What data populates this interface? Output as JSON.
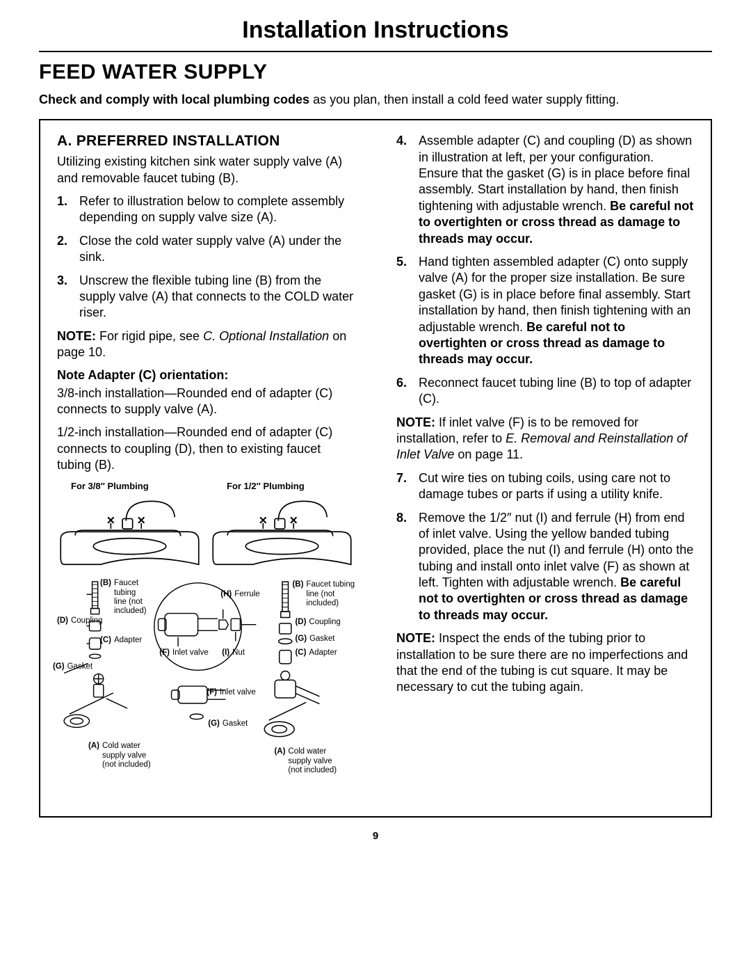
{
  "page_title": "Installation Instructions",
  "section_heading": "FEED WATER SUPPLY",
  "intro_bold": "Check and comply with local plumbing codes",
  "intro_rest": " as you plan, then install a cold feed water supply fitting.",
  "preferred_title": "A. PREFERRED INSTALLATION",
  "preferred_intro": "Utilizing existing kitchen sink water supply valve (A) and removable faucet tubing (B).",
  "steps_left": [
    {
      "n": "1.",
      "t": "Refer to illustration below to complete assembly depending on supply valve size (A)."
    },
    {
      "n": "2.",
      "t": "Close the cold water supply valve (A) under the sink."
    },
    {
      "n": "3.",
      "t": "Unscrew the flexible tubing line (B) from the supply valve (A) that connects to the COLD water riser."
    }
  ],
  "note1_label": "NOTE:",
  "note1_text": " For rigid pipe, see ",
  "note1_italic": "C. Optional Installation",
  "note1_tail": " on page 10.",
  "adapter_head": "Note Adapter (C) orientation:",
  "adapter_p1": "3/8-inch installation—Rounded end of adapter (C) connects to supply valve (A).",
  "adapter_p2": "1/2-inch installation—Rounded end of adapter (C) connects to coupling (D), then to existing faucet tubing (B).",
  "steps_right": [
    {
      "n": "4.",
      "pre": "Assemble adapter (C) and coupling (D) as shown in illustration at left, per your configuration. Ensure that the gasket (G) is in place before final assembly. Start installation by hand, then finish tightening with adjustable wrench. ",
      "bold": "Be careful not to overtighten or cross thread as damage to threads may occur."
    },
    {
      "n": "5.",
      "pre": "Hand tighten assembled adapter (C) onto supply valve (A) for the proper size installation. Be sure gasket (G) is in place before final assembly. Start installation by hand, then finish tightening with an adjustable wrench. ",
      "bold": "Be careful not to overtighten or cross thread as damage to threads may occur."
    },
    {
      "n": "6.",
      "pre": "Reconnect faucet tubing line (B) to top of adapter (C).",
      "bold": ""
    }
  ],
  "note2_label": "NOTE:",
  "note2_text": " If inlet valve (F) is to be removed for installation, refer to ",
  "note2_italic": "E. Removal and Reinstallation of Inlet Valve",
  "note2_tail": " on page 11.",
  "steps_right2": [
    {
      "n": "7.",
      "pre": "Cut wire ties on tubing coils, using care not to damage tubes or parts if using a utility knife.",
      "bold": ""
    },
    {
      "n": "8.",
      "pre": "Remove the 1/2″ nut (I) and ferrule (H) from end of inlet valve. Using the yellow banded tubing provided, place the nut (I) and ferrule (H) onto the tubing and install onto inlet valve (F) as shown at left. Tighten with adjustable wrench. ",
      "bold": "Be careful not to overtighten or cross thread as damage to threads may occur."
    }
  ],
  "note3_label": "NOTE:",
  "note3_text": " Inspect the ends of the tubing prior to installation to be sure there are no imperfections and that the end of the tubing is cut square. It may be necessary to cut the tubing again.",
  "diagram": {
    "head_38": "For 3/8″ Plumbing",
    "head_12": "For 1/2″ Plumbing",
    "labels": {
      "B": "Faucet tubing line (not included)",
      "D": "Coupling",
      "C": "Adapter",
      "G": "Gasket",
      "H": "Ferrule",
      "F": "Inlet valve",
      "I": "Nut",
      "A": "Cold water supply valve (not included)"
    }
  },
  "page_number": "9"
}
